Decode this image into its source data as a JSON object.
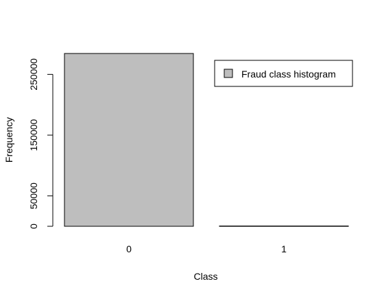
{
  "chart_data": {
    "type": "bar",
    "categories": [
      "0",
      "1"
    ],
    "series": [
      {
        "name": "Fraud class histogram",
        "values": [
          284315,
          492
        ]
      }
    ],
    "xlabel": "Class",
    "ylabel": "Frequency",
    "ylim": [
      0,
      284315
    ],
    "yticks": [
      0,
      50000,
      150000,
      250000
    ],
    "grid": false,
    "legend_position": "top-right",
    "colors": {
      "bar_fill": "#bebebe",
      "bar_stroke": "#000000"
    }
  }
}
